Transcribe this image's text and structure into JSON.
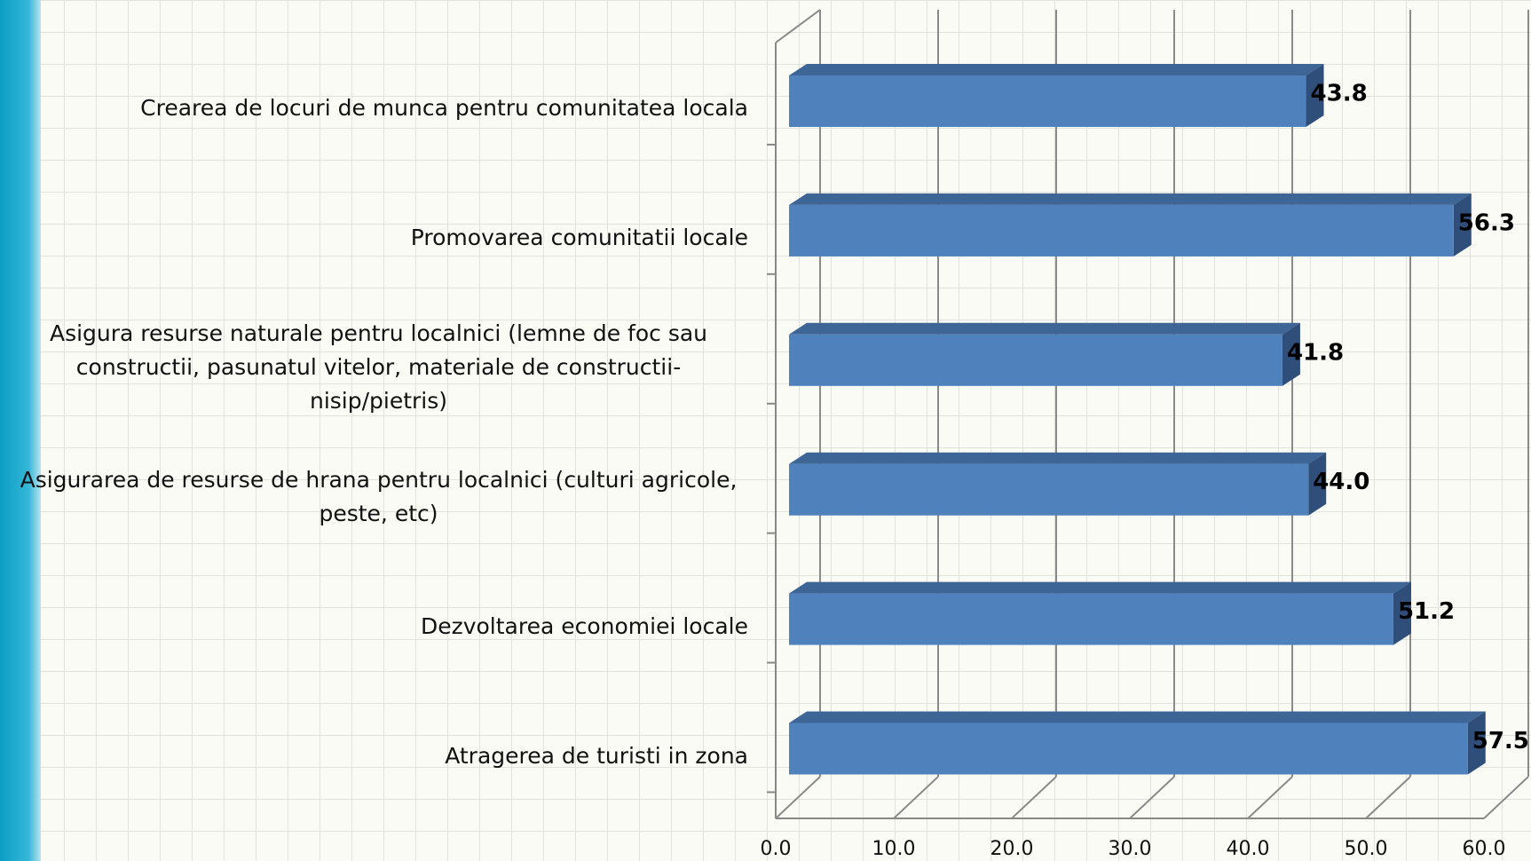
{
  "chart_data": {
    "type": "bar3d-horizontal",
    "categories": [
      "Crearea de locuri de munca pentru comunitatea locala",
      "Promovarea comunitatii locale",
      "Asigura resurse naturale pentru localnici (lemne de foc sau constructii, pasunatul vitelor, materiale de constructii- nisip/pietris)",
      "Asigurarea de resurse de hrana pentru localnici (culturi agricole, peste, etc)",
      "Dezvoltarea economiei locale",
      "Atragerea de turisti in zona"
    ],
    "values": [
      43.8,
      56.3,
      41.8,
      44.0,
      51.2,
      57.5
    ],
    "value_labels": [
      "43.8",
      "56.3",
      "41.8",
      "44.0",
      "51.2",
      "57.5"
    ],
    "color": "#4f81bd",
    "xlim": [
      0,
      60
    ],
    "xticks": [
      {
        "value": 0,
        "label": "0.0"
      },
      {
        "value": 10,
        "label": "10.0"
      },
      {
        "value": 20,
        "label": "20.0"
      },
      {
        "value": 30,
        "label": "30.0"
      },
      {
        "value": 40,
        "label": "40.0"
      },
      {
        "value": 50,
        "label": "50.0"
      },
      {
        "value": 60,
        "label": "60.0"
      }
    ],
    "grid": true
  }
}
